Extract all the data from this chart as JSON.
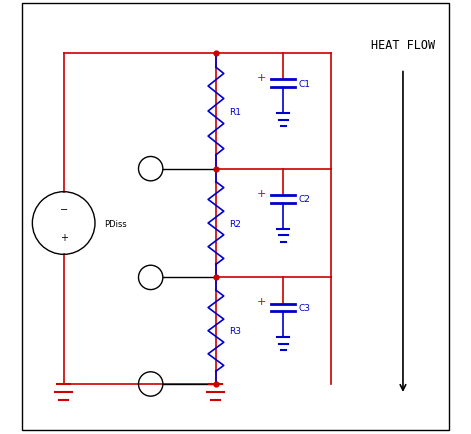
{
  "bg_color": "#ffffff",
  "border_color": "#000000",
  "red": "#cc0000",
  "blue": "#0000cc",
  "black": "#000000",
  "title": "HEAT FLOW",
  "source_label": "PDiss",
  "resistor_labels": [
    "R1",
    "R2",
    "R3"
  ],
  "capacitor_labels": [
    "C1",
    "C2",
    "C3"
  ],
  "figsize": [
    4.71,
    4.35
  ],
  "dpi": 100
}
